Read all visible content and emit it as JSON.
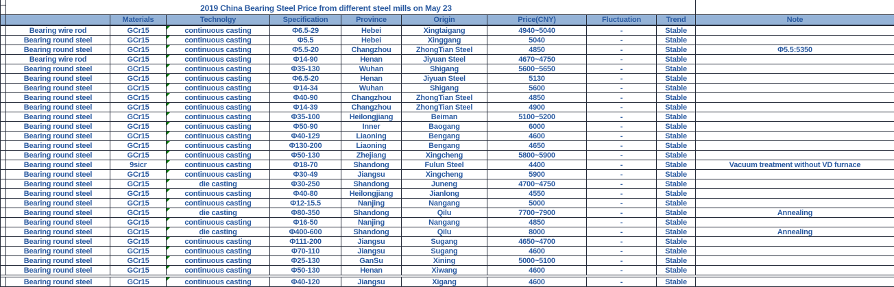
{
  "title": "2019 China Bearing Steel Price from different steel mills on May 23",
  "columns": {
    "materials": "Materials",
    "technology": "Technolgy",
    "specification": "Specification",
    "province": "Province",
    "origin": "Origin",
    "price": "Price(CNY)",
    "fluctuation": "Fluctuation",
    "trend": "Trend",
    "note": "Note"
  },
  "colors": {
    "header_bg": "#95B3D7",
    "text": "#2B5BA1",
    "border": "#262C3A",
    "triangle": "#0B7D0B"
  },
  "icons": {
    "cell_error_indicator": "green-corner-triangle"
  },
  "rows": [
    {
      "name": "Bearing wire rod",
      "material": "GCr15",
      "technology": "continuous casting",
      "spec": "Φ6.5-29",
      "province": "Hebei",
      "origin": "Xingtaigang",
      "price": "4940~5040",
      "fluct": "-",
      "trend": "Stable",
      "note": ""
    },
    {
      "name": "Bearing round steel",
      "material": "GCr15",
      "technology": "continuous casting",
      "spec": "Φ5.5",
      "province": "Hebei",
      "origin": "Xinggang",
      "price": "5040",
      "fluct": "-",
      "trend": "Stable",
      "note": ""
    },
    {
      "name": "Bearing round steel",
      "material": "GCr15",
      "technology": "continuous casting",
      "spec": "Φ5.5-20",
      "province": "Changzhou",
      "origin": "ZhongTian Steel",
      "price": "4850",
      "fluct": "-",
      "trend": "Stable",
      "note": "Φ5.5:5350"
    },
    {
      "name": "Bearing wire rod",
      "material": "GCr15",
      "technology": "continuous casting",
      "spec": "Φ14-90",
      "province": "Henan",
      "origin": "Jiyuan Steel",
      "price": "4670~4750",
      "fluct": "-",
      "trend": "Stable",
      "note": ""
    },
    {
      "name": "Bearing round steel",
      "material": "GCr15",
      "technology": "continuous casting",
      "spec": "Φ35-130",
      "province": "Wuhan",
      "origin": "Shigang",
      "price": "5600~5650",
      "fluct": "-",
      "trend": "Stable",
      "note": ""
    },
    {
      "name": "Bearing round steel",
      "material": "GCr15",
      "technology": "continuous casting",
      "spec": "Φ6.5-20",
      "province": "Henan",
      "origin": "Jiyuan Steel",
      "price": "5130",
      "fluct": "-",
      "trend": "Stable",
      "note": ""
    },
    {
      "name": "Bearing round steel",
      "material": "GCr15",
      "technology": "continuous casting",
      "spec": "Φ14-34",
      "province": "Wuhan",
      "origin": "Shigang",
      "price": "5600",
      "fluct": "-",
      "trend": "Stable",
      "note": ""
    },
    {
      "name": "Bearing round steel",
      "material": "GCr15",
      "technology": "continuous casting",
      "spec": "Φ40-90",
      "province": "Changzhou",
      "origin": "ZhongTian Steel",
      "price": "4850",
      "fluct": "-",
      "trend": "Stable",
      "note": ""
    },
    {
      "name": "Bearing round steel",
      "material": "GCr15",
      "technology": "continuous casting",
      "spec": "Φ14-39",
      "province": "Changzhou",
      "origin": "ZhongTian Steel",
      "price": "4900",
      "fluct": "-",
      "trend": "Stable",
      "note": ""
    },
    {
      "name": "Bearing round steel",
      "material": "GCr15",
      "technology": "continuous casting",
      "spec": "Φ35-100",
      "province": "Heilongjiang",
      "origin": "Beiman",
      "price": "5100~5200",
      "fluct": "-",
      "trend": "Stable",
      "note": ""
    },
    {
      "name": "Bearing round steel",
      "material": "GCr15",
      "technology": "continuous casting",
      "spec": "Φ50-90",
      "province": "Inner",
      "origin": "Baogang",
      "price": "6000",
      "fluct": "-",
      "trend": "Stable",
      "note": ""
    },
    {
      "name": "Bearing round steel",
      "material": "GCr15",
      "technology": "continuous casting",
      "spec": "Φ40-129",
      "province": "Liaoning",
      "origin": "Bengang",
      "price": "4600",
      "fluct": "-",
      "trend": "Stable",
      "note": ""
    },
    {
      "name": "Bearing round steel",
      "material": "GCr15",
      "technology": "continuous casting",
      "spec": "Φ130-200",
      "province": "Liaoning",
      "origin": "Bengang",
      "price": "4650",
      "fluct": "-",
      "trend": "Stable",
      "note": ""
    },
    {
      "name": "Bearing round steel",
      "material": "GCr15",
      "technology": "continuous casting",
      "spec": "Φ50-130",
      "province": "Zhejiang",
      "origin": "Xingcheng",
      "price": "5800~5900",
      "fluct": "-",
      "trend": "Stable",
      "note": ""
    },
    {
      "name": "Bearing round steel",
      "material": "9sicr",
      "technology": "continuous casting",
      "spec": "Φ18-70",
      "province": "Shandong",
      "origin": "Fulun Steel",
      "price": "4400",
      "fluct": "-",
      "trend": "Stable",
      "note": "Vacuum treatment without VD furnace"
    },
    {
      "name": "Bearing round steel",
      "material": "GCr15",
      "technology": "continuous casting",
      "spec": "Φ30-49",
      "province": "Jiangsu",
      "origin": "Xingcheng",
      "price": "5900",
      "fluct": "-",
      "trend": "Stable",
      "note": ""
    },
    {
      "name": "Bearing round steel",
      "material": "GCr15",
      "technology": "die casting",
      "spec": "Φ30-250",
      "province": "Shandong",
      "origin": "Juneng",
      "price": "4700~4750",
      "fluct": "-",
      "trend": "Stable",
      "note": ""
    },
    {
      "name": "Bearing round steel",
      "material": "GCr15",
      "technology": "continuous casting",
      "spec": "Φ40-80",
      "province": "Heilongjiang",
      "origin": "Jianlong",
      "price": "4550",
      "fluct": "-",
      "trend": "Stable",
      "note": ""
    },
    {
      "name": "Bearing round steel",
      "material": "GCr15",
      "technology": "continuous casting",
      "spec": "Φ12-15.5",
      "province": "Nanjing",
      "origin": "Nangang",
      "price": "5000",
      "fluct": "-",
      "trend": "Stable",
      "note": ""
    },
    {
      "name": "Bearing round steel",
      "material": "GCr15",
      "technology": "die casting",
      "spec": "Φ80-350",
      "province": "Shandong",
      "origin": "Qilu",
      "price": "7700~7900",
      "fluct": "-",
      "trend": "Stable",
      "note": "Annealing"
    },
    {
      "name": "Bearing round steel",
      "material": "GCr15",
      "technology": "continuous casting",
      "spec": "Φ16-50",
      "province": "Nanjing",
      "origin": "Nangang",
      "price": "4850",
      "fluct": "-",
      "trend": "Stable",
      "note": ""
    },
    {
      "name": "Bearing round steel",
      "material": "GCr15",
      "technology": "die casting",
      "spec": "Φ400-600",
      "province": "Shandong",
      "origin": "Qilu",
      "price": "8000",
      "fluct": "-",
      "trend": "Stable",
      "note": "Annealing"
    },
    {
      "name": "Bearing round steel",
      "material": "GCr15",
      "technology": "continuous casting",
      "spec": "Φ111-200",
      "province": "Jiangsu",
      "origin": "Sugang",
      "price": "4650~4700",
      "fluct": "-",
      "trend": "Stable",
      "note": ""
    },
    {
      "name": "Bearing round steel",
      "material": "GCr15",
      "technology": "continuous casting",
      "spec": "Φ70-110",
      "province": "Jiangsu",
      "origin": "Sugang",
      "price": "4600",
      "fluct": "-",
      "trend": "Stable",
      "note": ""
    },
    {
      "name": "Bearing round steel",
      "material": "GCr15",
      "technology": "continuous casting",
      "spec": "Φ25-130",
      "province": "GanSu",
      "origin": "Xining",
      "price": "5000~5100",
      "fluct": "-",
      "trend": "Stable",
      "note": ""
    },
    {
      "name": "Bearing round steel",
      "material": "GCr15",
      "technology": "continuous casting",
      "spec": "Φ50-130",
      "province": "Henan",
      "origin": "Xiwang",
      "price": "4600",
      "fluct": "-",
      "trend": "Stable",
      "note": ""
    },
    {
      "name": "Bearing round steel",
      "material": "GCr15",
      "technology": "continuous casting",
      "spec": "Φ40-120",
      "province": "Jiangsu",
      "origin": "Xigang",
      "price": "4600",
      "fluct": "-",
      "trend": "Stable",
      "note": ""
    }
  ]
}
